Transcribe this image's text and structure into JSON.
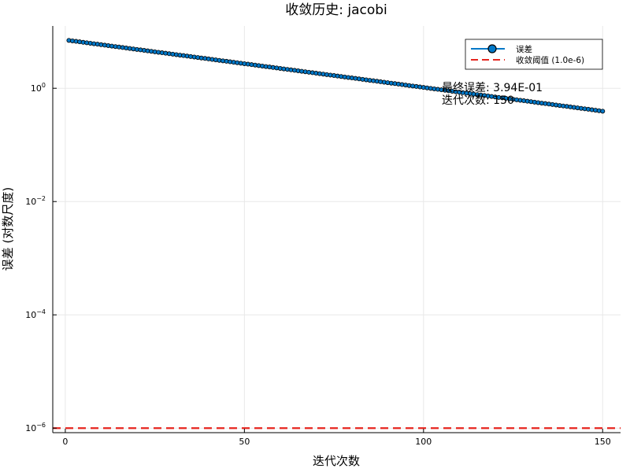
{
  "chart_data": {
    "type": "line",
    "title": "收敛历史: jacobi",
    "xlabel": "迭代次数",
    "ylabel": "误差 (对数尺度)",
    "xlim": [
      -3.5,
      155
    ],
    "ylim_log10": [
      -6.08,
      1.1
    ],
    "y_scale": "log",
    "grid": true,
    "legend_position": "top-right",
    "x_ticks": [
      {
        "value": 0,
        "label": "0"
      },
      {
        "value": 50,
        "label": "50"
      },
      {
        "value": 100,
        "label": "100"
      },
      {
        "value": 150,
        "label": "150"
      }
    ],
    "y_ticks": [
      {
        "exp": 0,
        "base": "10",
        "sup": "0"
      },
      {
        "exp": -2,
        "base": "10",
        "sup": "−2"
      },
      {
        "exp": -4,
        "base": "10",
        "sup": "−4"
      },
      {
        "exp": -6,
        "base": "10",
        "sup": "−6"
      }
    ],
    "series": [
      {
        "name": "误差",
        "color": "#0078c8",
        "x_start": 1,
        "x_end": 150,
        "y_start": 7.0,
        "y_end": 0.394,
        "style": "line-with-circle-markers"
      },
      {
        "name": "收敛阈值 (1.0e-6)",
        "color": "#e6261f",
        "value": 1e-06,
        "style": "dashed-horizontal"
      }
    ],
    "annotations": [
      {
        "text": "最终误差: 3.94E-01",
        "x": 105,
        "y": 1.0
      },
      {
        "text": "迭代次数: 150",
        "x": 105,
        "y": 0.6
      }
    ]
  }
}
